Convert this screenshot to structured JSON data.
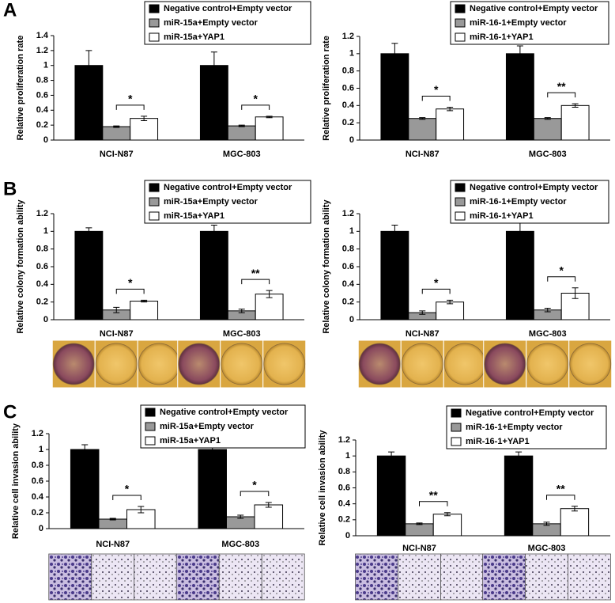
{
  "chart_data": [
    {
      "type": "bar",
      "panel_label": "A",
      "y_label": "Relative proliferation rate",
      "categories": [
        "NCI-N87",
        "MGC-803"
      ],
      "series": [
        {
          "name": "Negative control+Empty vector",
          "color": "#000000",
          "values": [
            1,
            1
          ],
          "errors": [
            0.2,
            0.18
          ]
        },
        {
          "name": "miR-15a+Empty vector",
          "color": "#999999",
          "values": [
            0.18,
            0.19
          ],
          "errors": [
            0.01,
            0.01
          ]
        },
        {
          "name": "miR-15a+YAP1",
          "color": "#ffffff",
          "values": [
            0.29,
            0.31
          ],
          "errors": [
            0.03,
            0.01
          ]
        }
      ],
      "significance": [
        "*",
        "*"
      ],
      "ylim": [
        0,
        1.4
      ],
      "yticks": [
        0,
        0.2,
        0.4,
        0.6,
        0.8,
        1,
        1.2,
        1.4
      ]
    },
    {
      "type": "bar",
      "y_label": "Relative proliferation rate",
      "categories": [
        "NCI-N87",
        "MGC-803"
      ],
      "series": [
        {
          "name": "Negative control+Empty vector",
          "color": "#000000",
          "values": [
            1,
            1
          ],
          "errors": [
            0.12,
            0.09
          ]
        },
        {
          "name": "miR-16-1+Empty vector",
          "color": "#999999",
          "values": [
            0.25,
            0.25
          ],
          "errors": [
            0.01,
            0.01
          ]
        },
        {
          "name": "miR-16-1+YAP1",
          "color": "#ffffff",
          "values": [
            0.36,
            0.4
          ],
          "errors": [
            0.02,
            0.02
          ]
        }
      ],
      "significance": [
        "*",
        "**"
      ],
      "ylim": [
        0,
        1.2
      ],
      "yticks": [
        0,
        0.2,
        0.4,
        0.6,
        0.8,
        1,
        1.2
      ]
    },
    {
      "type": "bar",
      "panel_label": "B",
      "y_label": "Relative colony formation ability",
      "categories": [
        "NCI-N87",
        "MGC-803"
      ],
      "series": [
        {
          "name": "Negative control+Empty vector",
          "color": "#000000",
          "values": [
            1,
            1
          ],
          "errors": [
            0.04,
            0.07
          ]
        },
        {
          "name": "miR-15a+Empty vector",
          "color": "#999999",
          "values": [
            0.11,
            0.1
          ],
          "errors": [
            0.03,
            0.02
          ]
        },
        {
          "name": "miR-15a+YAP1",
          "color": "#ffffff",
          "values": [
            0.21,
            0.29
          ],
          "errors": [
            0.01,
            0.04
          ]
        }
      ],
      "significance": [
        "*",
        "**"
      ],
      "ylim": [
        0,
        1.2
      ],
      "yticks": [
        0,
        0.2,
        0.4,
        0.6,
        0.8,
        1,
        1.2
      ]
    },
    {
      "type": "bar",
      "y_label": "Relative colony formation ability",
      "categories": [
        "NCI-N87",
        "MGC-803"
      ],
      "series": [
        {
          "name": "Negative control+Empty vector",
          "color": "#000000",
          "values": [
            1,
            1
          ],
          "errors": [
            0.07,
            0.1
          ]
        },
        {
          "name": "miR-16-1+Empty vector",
          "color": "#999999",
          "values": [
            0.08,
            0.11
          ],
          "errors": [
            0.02,
            0.02
          ]
        },
        {
          "name": "miR-16-1+YAP1",
          "color": "#ffffff",
          "values": [
            0.2,
            0.3
          ],
          "errors": [
            0.02,
            0.06
          ]
        }
      ],
      "significance": [
        "*",
        "*"
      ],
      "ylim": [
        0,
        1.2
      ],
      "yticks": [
        0,
        0.2,
        0.4,
        0.6,
        0.8,
        1,
        1.2
      ]
    },
    {
      "type": "bar",
      "panel_label": "C",
      "y_label": "Relative cell invasion ability",
      "categories": [
        "NCI-N87",
        "MGC-803"
      ],
      "series": [
        {
          "name": "Negative control+Empty vector",
          "color": "#000000",
          "values": [
            1,
            1
          ],
          "errors": [
            0.06,
            0.08
          ]
        },
        {
          "name": "miR-15a+Empty vector",
          "color": "#999999",
          "values": [
            0.12,
            0.15
          ],
          "errors": [
            0.01,
            0.02
          ]
        },
        {
          "name": "miR-15a+YAP1",
          "color": "#ffffff",
          "values": [
            0.24,
            0.3
          ],
          "errors": [
            0.04,
            0.03
          ]
        }
      ],
      "significance": [
        "*",
        "*"
      ],
      "ylim": [
        0,
        1.2
      ],
      "yticks": [
        0,
        0.2,
        0.4,
        0.6,
        0.8,
        1,
        1.2
      ]
    },
    {
      "type": "bar",
      "y_label": "Relative cell invasion ability",
      "categories": [
        "NCI-N87",
        "MGC-803"
      ],
      "series": [
        {
          "name": "Negative control+Empty vector",
          "color": "#000000",
          "values": [
            1,
            1
          ],
          "errors": [
            0.05,
            0.05
          ]
        },
        {
          "name": "miR-16-1+Empty vector",
          "color": "#999999",
          "values": [
            0.15,
            0.15
          ],
          "errors": [
            0.01,
            0.02
          ]
        },
        {
          "name": "miR-16-1+YAP1",
          "color": "#ffffff",
          "values": [
            0.27,
            0.34
          ],
          "errors": [
            0.02,
            0.03
          ]
        }
      ],
      "significance": [
        "**",
        "**"
      ],
      "ylim": [
        0,
        1.2
      ],
      "yticks": [
        0,
        0.2,
        0.4,
        0.6,
        0.8,
        1,
        1.2
      ]
    }
  ]
}
